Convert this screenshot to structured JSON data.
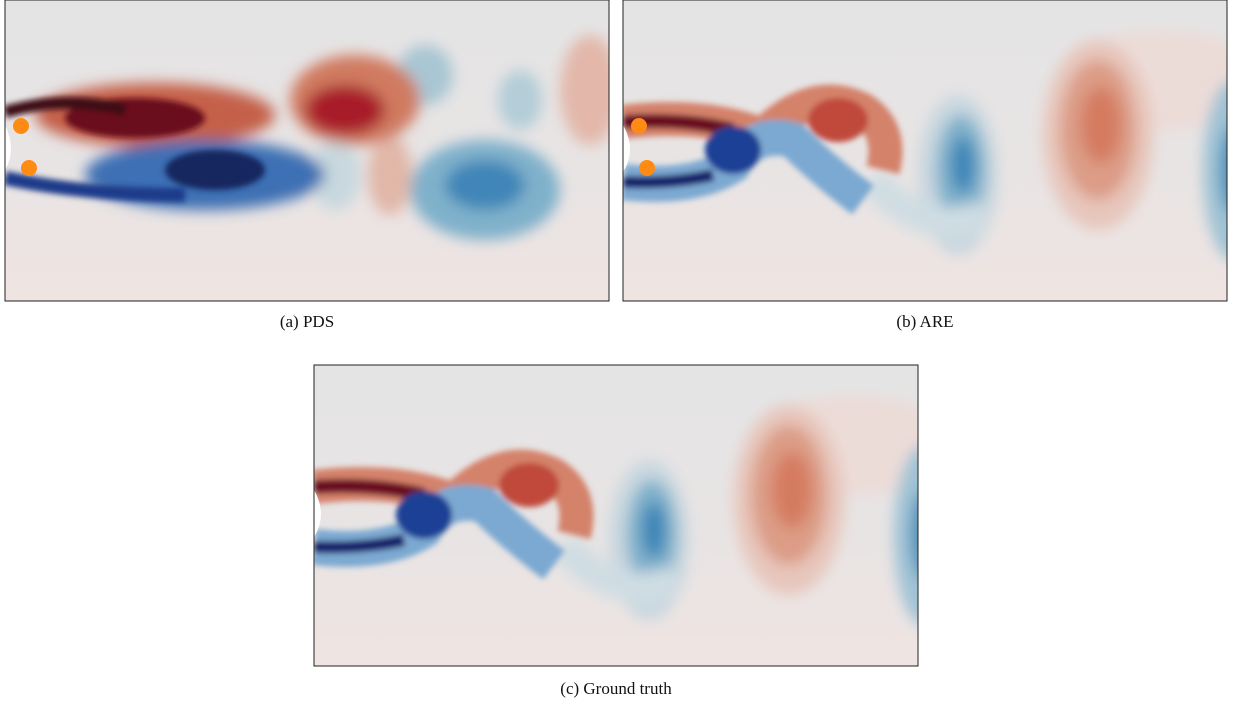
{
  "panels": [
    {
      "caption": "(a)  PDS"
    },
    {
      "caption": "(b)  ARE"
    },
    {
      "caption": "(c)  Ground truth"
    }
  ]
}
